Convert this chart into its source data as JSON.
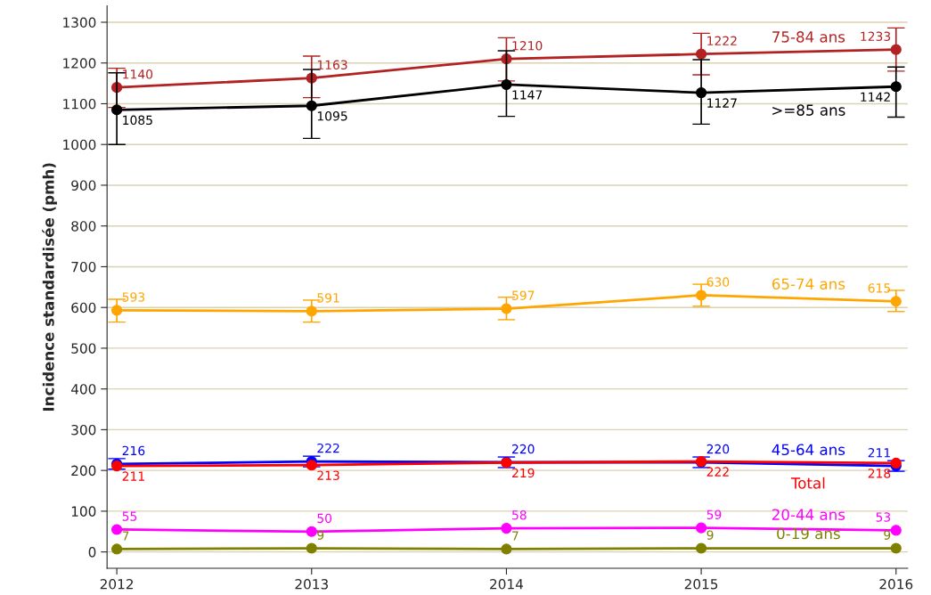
{
  "chart_data": {
    "type": "line",
    "ylabel": "Incidence standardisée (pmh)",
    "x": [
      2012,
      2013,
      2014,
      2015,
      2016
    ],
    "xlim": [
      2011.95,
      2016.06
    ],
    "xticks": [
      2012,
      2013,
      2014,
      2015,
      2016
    ],
    "ylim": [
      -40,
      1340
    ],
    "yticks": [
      0,
      100,
      200,
      300,
      400,
      500,
      600,
      700,
      800,
      900,
      1000,
      1100,
      1200,
      1300
    ],
    "grid": "y",
    "legend": false,
    "marker": "circle",
    "line_style": "solid",
    "data_labels": true,
    "series": [
      {
        "name": "75-84 ans",
        "color": "#b22222",
        "values": [
          1140,
          1163,
          1210,
          1222,
          1233
        ],
        "errors": [
          [
            1091,
            1187
          ],
          [
            1115,
            1217
          ],
          [
            1156,
            1262
          ],
          [
            1171,
            1273
          ],
          [
            1180,
            1286
          ]
        ]
      },
      {
        "name": ">=85 ans",
        "color": "#000000",
        "values": [
          1085,
          1095,
          1147,
          1127,
          1142
        ],
        "errors": [
          [
            1000,
            1176
          ],
          [
            1015,
            1184
          ],
          [
            1069,
            1230
          ],
          [
            1050,
            1208
          ],
          [
            1067,
            1190
          ]
        ]
      },
      {
        "name": "65-74 ans",
        "color": "#ffa500",
        "values": [
          593,
          591,
          597,
          630,
          615
        ],
        "errors": [
          [
            564,
            620
          ],
          [
            564,
            618
          ],
          [
            570,
            625
          ],
          [
            603,
            657
          ],
          [
            590,
            642
          ]
        ]
      },
      {
        "name": "45-64 ans",
        "color": "#0000ff",
        "values": [
          216,
          222,
          220,
          220,
          211
        ],
        "errors": [
          [
            203,
            229
          ],
          [
            209,
            235
          ],
          [
            207,
            233
          ],
          [
            207,
            233
          ],
          [
            198,
            224
          ]
        ]
      },
      {
        "name": "Total",
        "color": "#ff0000",
        "values": [
          211,
          213,
          219,
          222,
          218
        ]
      },
      {
        "name": "20-44 ans",
        "color": "#ff00ff",
        "values": [
          55,
          50,
          58,
          59,
          53
        ]
      },
      {
        "name": "0-19 ans",
        "color": "#808000",
        "values": [
          7,
          9,
          7,
          9,
          9
        ]
      }
    ]
  }
}
